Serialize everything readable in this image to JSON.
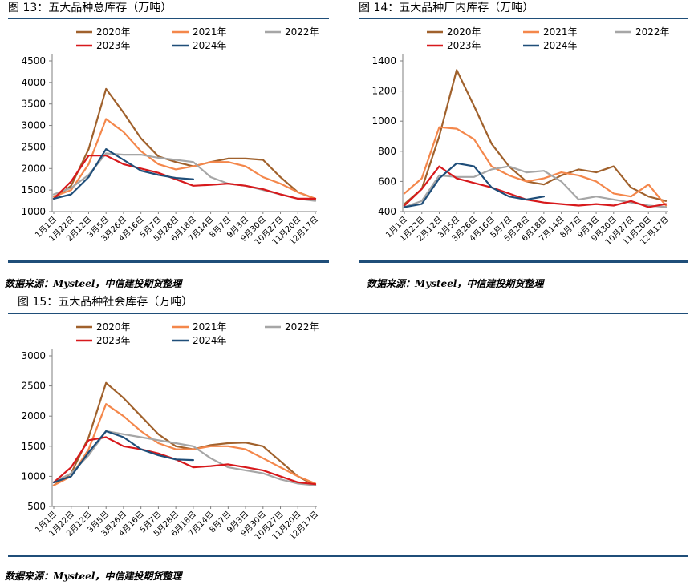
{
  "x_ticks": [
    "1月1日",
    "1月22日",
    "2月12日",
    "3月5日",
    "3月26日",
    "4月16日",
    "5月7日",
    "5月28日",
    "6月18日",
    "7月14日",
    "8月7日",
    "9月3日",
    "9月30日",
    "10月27日",
    "11月20日",
    "12月17日"
  ],
  "legend_labels": [
    "2020年",
    "2021年",
    "2022年",
    "2023年",
    "2024年"
  ],
  "series_colors": {
    "2020年": "#a0612c",
    "2021年": "#f4874b",
    "2022年": "#a6a6a6",
    "2023年": "#d7191c",
    "2024年": "#1f4e79"
  },
  "figures": [
    {
      "title": "图 13：五大品种总库存（万吨）",
      "source": "数据来源：Mysteel，中信建投期货整理",
      "chart_data": {
        "type": "line",
        "x": [
          "1月1日",
          "1月22日",
          "2月12日",
          "3月5日",
          "3月26日",
          "4月16日",
          "5月7日",
          "5月28日",
          "6月18日",
          "7月14日",
          "8月7日",
          "9月3日",
          "9月30日",
          "10月27日",
          "11月20日",
          "12月17日"
        ],
        "ylim": [
          1000,
          4500
        ],
        "yticks": [
          1000,
          1500,
          2000,
          2500,
          3000,
          3500,
          4000,
          4500
        ],
        "grid": false,
        "legend_position": "top",
        "series": [
          {
            "name": "2020年",
            "values": [
              1300,
              1600,
              2450,
              3850,
              3300,
              2700,
              2280,
              2150,
              2050,
              2150,
              2230,
              2230,
              2200,
              1800,
              1450,
              1300
            ]
          },
          {
            "name": "2021年",
            "values": [
              1350,
              1500,
              2100,
              3150,
              2850,
              2400,
              2100,
              1980,
              2050,
              2150,
              2150,
              2050,
              1800,
              1650,
              1450,
              1300
            ]
          },
          {
            "name": "2022年",
            "values": [
              1400,
              1550,
              1850,
              2350,
              2320,
              2320,
              2250,
              2200,
              2150,
              1800,
              1650,
              1600,
              1500,
              1400,
              1300,
              1250
            ]
          },
          {
            "name": "2023年",
            "values": [
              1300,
              1700,
              2300,
              2300,
              2100,
              2000,
              1900,
              1750,
              1600,
              1620,
              1650,
              1600,
              1520,
              1400,
              1300,
              1300
            ]
          },
          {
            "name": "2024年",
            "values": [
              1300,
              1400,
              1800,
              2450,
              2200,
              1950,
              1850,
              1780,
              1750,
              null,
              null,
              null,
              null,
              null,
              null,
              null
            ]
          }
        ]
      }
    },
    {
      "title": "图 14：五大品种厂内库存（万吨）",
      "source": "数据来源：Mysteel，中信建投期货整理",
      "chart_data": {
        "type": "line",
        "x": [
          "1月1日",
          "1月22日",
          "2月12日",
          "3月5日",
          "3月26日",
          "4月16日",
          "5月7日",
          "5月28日",
          "6月18日",
          "7月14日",
          "8月7日",
          "9月3日",
          "9月30日",
          "10月27日",
          "11月20日",
          "12月17日"
        ],
        "ylim": [
          400,
          1400
        ],
        "yticks": [
          400,
          600,
          800,
          1000,
          1200,
          1400
        ],
        "grid": false,
        "legend_position": "top",
        "series": [
          {
            "name": "2020年",
            "values": [
              450,
              550,
              900,
              1340,
              1100,
              850,
              700,
              600,
              580,
              640,
              680,
              660,
              700,
              560,
              500,
              470
            ]
          },
          {
            "name": "2021年",
            "values": [
              520,
              620,
              960,
              950,
              880,
              700,
              640,
              600,
              620,
              660,
              640,
              600,
              520,
              500,
              580,
              440
            ]
          },
          {
            "name": "2022年",
            "values": [
              430,
              470,
              640,
              630,
              630,
              680,
              700,
              660,
              670,
              600,
              480,
              500,
              480,
              460,
              440,
              430
            ]
          },
          {
            "name": "2023年",
            "values": [
              440,
              550,
              700,
              620,
              590,
              560,
              520,
              480,
              460,
              450,
              440,
              450,
              440,
              470,
              430,
              450
            ]
          },
          {
            "name": "2024年",
            "values": [
              430,
              450,
              620,
              720,
              700,
              560,
              500,
              480,
              500,
              null,
              null,
              null,
              null,
              null,
              null,
              null
            ]
          }
        ]
      }
    },
    {
      "title": "图 15：五大品种社会库存（万吨）",
      "source": "数据来源：Mysteel，中信建投期货整理",
      "chart_data": {
        "type": "line",
        "x": [
          "1月1日",
          "1月22日",
          "2月12日",
          "3月5日",
          "3月26日",
          "4月16日",
          "5月7日",
          "5月28日",
          "6月18日",
          "7月14日",
          "8月7日",
          "9月3日",
          "9月30日",
          "10月27日",
          "11月20日",
          "12月17日"
        ],
        "ylim": [
          500,
          3000
        ],
        "yticks": [
          500,
          1000,
          1500,
          2000,
          2500,
          3000
        ],
        "grid": false,
        "legend_position": "top",
        "series": [
          {
            "name": "2020年",
            "values": [
              850,
              1050,
              1650,
              2550,
              2300,
              2000,
              1700,
              1500,
              1450,
              1520,
              1550,
              1560,
              1500,
              1250,
              1000,
              850
            ]
          },
          {
            "name": "2021年",
            "values": [
              850,
              1000,
              1450,
              2200,
              2000,
              1750,
              1550,
              1450,
              1450,
              1500,
              1500,
              1450,
              1300,
              1150,
              1000,
              880
            ]
          },
          {
            "name": "2022年",
            "values": [
              900,
              1050,
              1350,
              1750,
              1700,
              1650,
              1600,
              1550,
              1500,
              1300,
              1150,
              1100,
              1050,
              950,
              880,
              850
            ]
          },
          {
            "name": "2023年",
            "values": [
              900,
              1150,
              1600,
              1650,
              1500,
              1450,
              1380,
              1280,
              1150,
              1170,
              1200,
              1150,
              1100,
              1000,
              900,
              870
            ]
          },
          {
            "name": "2024年",
            "values": [
              900,
              1000,
              1400,
              1750,
              1650,
              1450,
              1350,
              1280,
              1270,
              null,
              null,
              null,
              null,
              null,
              null,
              null
            ]
          }
        ]
      }
    }
  ]
}
